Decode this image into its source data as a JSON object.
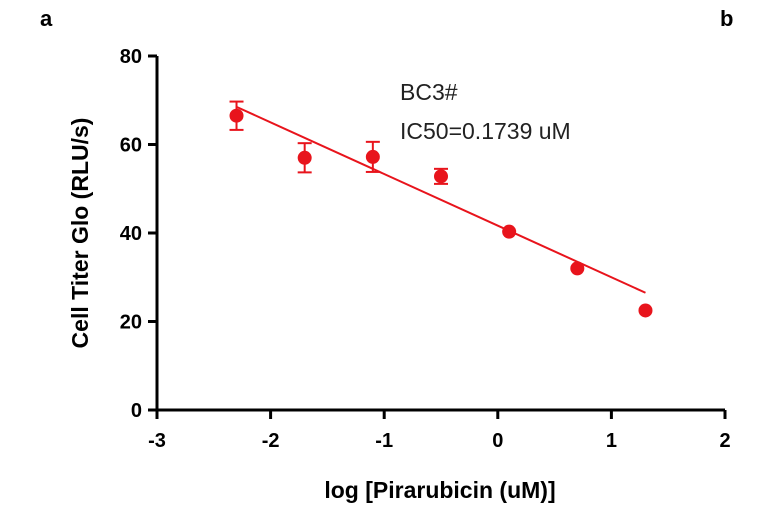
{
  "panel_labels": [
    "a",
    "b"
  ],
  "chart_data": {
    "type": "scatter",
    "title": "",
    "xlabel": "log [Pirarubicin (uM)]",
    "ylabel": "Cell Titer Glo (RLU/s)",
    "xlim": [
      -3,
      2
    ],
    "ylim": [
      0,
      80
    ],
    "xticks": [
      -3,
      -2,
      -1,
      0,
      1,
      2
    ],
    "yticks": [
      0,
      20,
      40,
      60,
      80
    ],
    "xtick_labels": [
      "-3",
      "-2",
      "-1",
      "0",
      "1",
      "2"
    ],
    "ytick_labels": [
      "0",
      "20",
      "40",
      "60",
      "80"
    ],
    "grid": false,
    "series": [
      {
        "name": "BC3#",
        "color": "#e8141c",
        "x": [
          -2.3,
          -1.7,
          -1.1,
          -0.5,
          0.1,
          0.7,
          1.3
        ],
        "y": [
          66.5,
          57.0,
          57.2,
          52.8,
          40.3,
          32.0,
          22.5
        ],
        "err": [
          3.2,
          3.3,
          3.4,
          1.7,
          0.6,
          0.5,
          0.4
        ]
      }
    ],
    "fit_line": {
      "x": [
        -2.3,
        1.3
      ],
      "y": [
        68.5,
        26.5
      ],
      "color": "#e8141c"
    },
    "annotations": [
      "BC3#",
      "IC50=0.1739 uM"
    ]
  }
}
